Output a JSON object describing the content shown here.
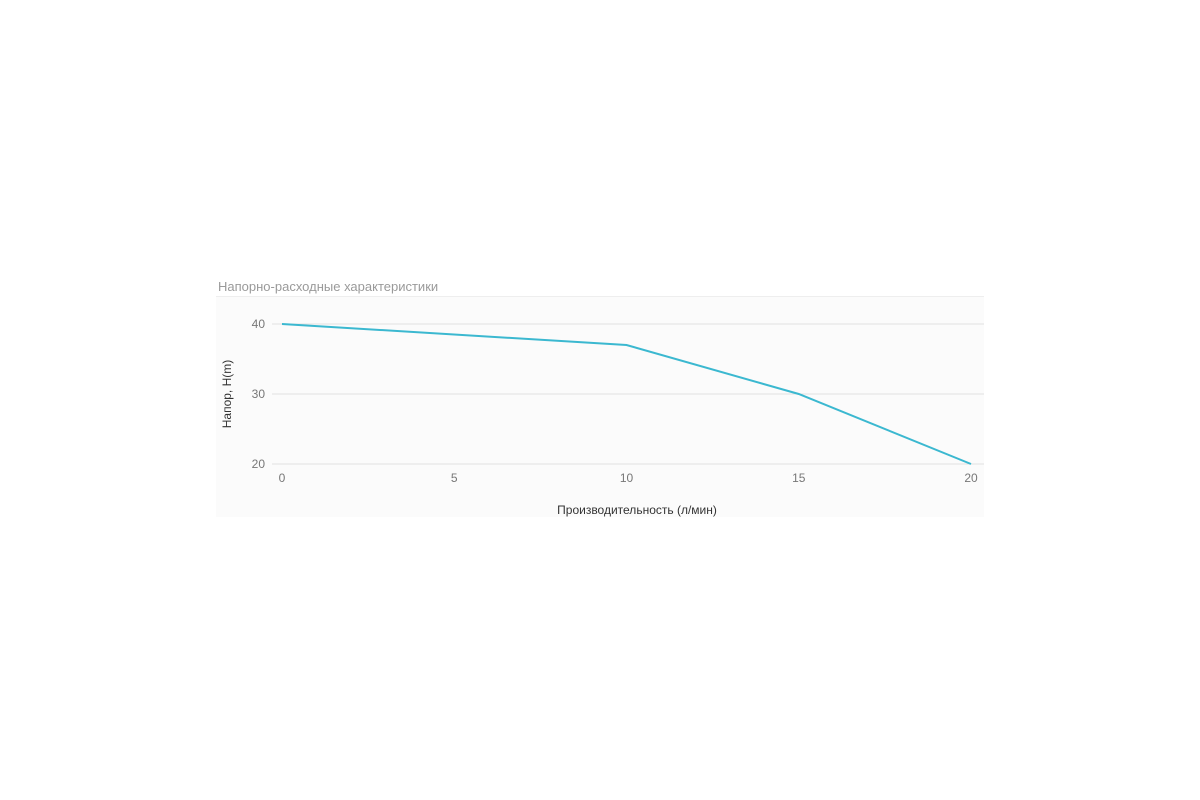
{
  "chart_data": {
    "type": "line",
    "title": "Напорно-расходные характеристики",
    "xlabel": "Производительность (л/мин)",
    "ylabel": "Напор, H(m)",
    "x": [
      0,
      10,
      15,
      20
    ],
    "series": [
      {
        "values": [
          40,
          37,
          30,
          20
        ]
      }
    ],
    "xlim": [
      0,
      20
    ],
    "ylim": [
      20,
      40
    ],
    "xticks": [
      0,
      5,
      10,
      15,
      20
    ],
    "yticks": [
      20,
      30,
      40
    ],
    "grid": "horizontal",
    "line_color": "#3bb8d0"
  }
}
